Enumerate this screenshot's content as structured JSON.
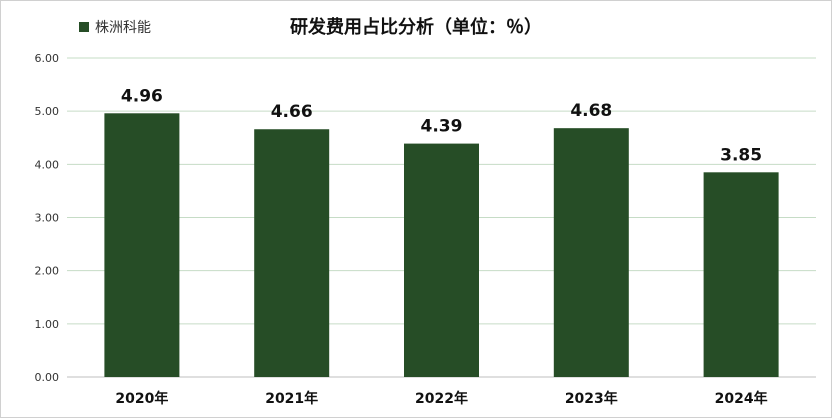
{
  "chart_data": {
    "type": "bar",
    "title": "研发费用占比分析（单位：％）",
    "xlabel": "",
    "ylabel": "",
    "categories": [
      "2020年",
      "2021年",
      "2022年",
      "2023年",
      "2024年"
    ],
    "series": [
      {
        "name": "株洲科能",
        "values": [
          4.96,
          4.66,
          4.39,
          4.68,
          3.85
        ]
      }
    ],
    "value_labels": [
      "4.96",
      "4.66",
      "4.39",
      "4.68",
      "3.85"
    ],
    "ylim": [
      0,
      6
    ],
    "yticks": [
      "0.00",
      "1.00",
      "2.00",
      "3.00",
      "4.00",
      "5.00",
      "6.00"
    ],
    "grid": true,
    "legend_position": "top-left",
    "colors": {
      "bar": "#264d26",
      "grid": "#c6dcc6",
      "axis": "#bfbfbf"
    }
  }
}
